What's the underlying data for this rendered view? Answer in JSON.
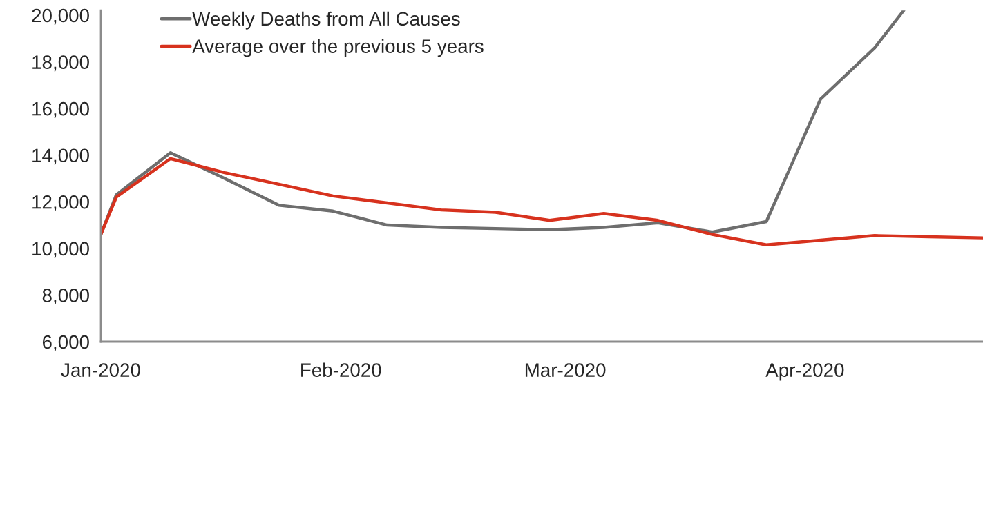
{
  "chart_data": {
    "type": "line",
    "x": [
      "2020-01-01",
      "2020-01-03",
      "2020-01-10",
      "2020-01-17",
      "2020-01-24",
      "2020-01-31",
      "2020-02-07",
      "2020-02-14",
      "2020-02-21",
      "2020-02-28",
      "2020-03-06",
      "2020-03-13",
      "2020-03-20",
      "2020-03-27",
      "2020-04-03",
      "2020-04-10",
      "2020-04-17",
      "2020-04-24"
    ],
    "series": [
      {
        "name": "Weekly Deaths from All Causes",
        "color": "#6e6e6e",
        "x": [
          "2020-01-01",
          "2020-01-03",
          "2020-01-10",
          "2020-01-17",
          "2020-01-24",
          "2020-01-31",
          "2020-02-07",
          "2020-02-14",
          "2020-02-21",
          "2020-02-28",
          "2020-03-06",
          "2020-03-13",
          "2020-03-20",
          "2020-03-27",
          "2020-04-03",
          "2020-04-10",
          "2020-04-13T18:00"
        ],
        "values": [
          10600,
          12300,
          14100,
          13000,
          11850,
          11600,
          11000,
          10900,
          10850,
          10800,
          10900,
          11100,
          10700,
          11150,
          16400,
          18600,
          20200
        ]
      },
      {
        "name": "Average over the previous 5 years",
        "color": "#d7321e",
        "values": [
          10600,
          12200,
          13850,
          13250,
          12750,
          12250,
          11950,
          11650,
          11550,
          11200,
          11500,
          11200,
          10600,
          10150,
          10350,
          10550,
          10500,
          10450
        ]
      }
    ],
    "xlim": [
      "2020-01-01",
      "2020-04-24"
    ],
    "xticks": [
      {
        "value": "2020-01-01",
        "label": "Jan-2020"
      },
      {
        "value": "2020-02-01",
        "label": "Feb-2020"
      },
      {
        "value": "2020-03-01",
        "label": "Mar-2020"
      },
      {
        "value": "2020-04-01",
        "label": "Apr-2020"
      }
    ],
    "ylim": [
      6000,
      20200
    ],
    "yticks": [
      {
        "value": 6000,
        "label": "6,000"
      },
      {
        "value": 8000,
        "label": "8,000"
      },
      {
        "value": 10000,
        "label": "10,000"
      },
      {
        "value": 12000,
        "label": "12,000"
      },
      {
        "value": 14000,
        "label": "14,000"
      },
      {
        "value": 16000,
        "label": "16,000"
      },
      {
        "value": 18000,
        "label": "18,000"
      },
      {
        "value": 20000,
        "label": "20,000"
      }
    ],
    "legend": "top left",
    "grid": false,
    "line_style": "solid",
    "marker": "none"
  }
}
